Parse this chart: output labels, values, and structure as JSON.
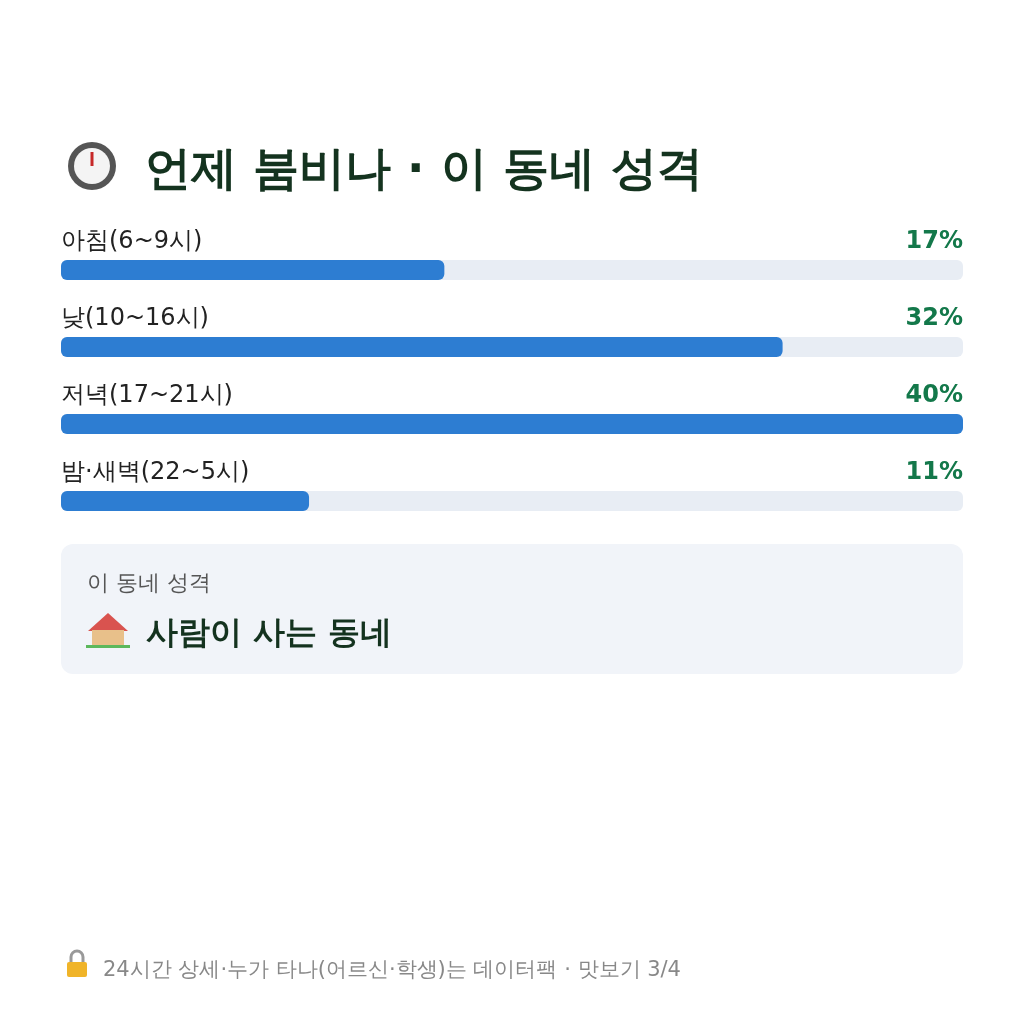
{
  "chart_data": {
    "type": "bar",
    "orientation": "horizontal",
    "title": "언제 붐비나 · 이 동네 성격",
    "categories": [
      "아침(6~9시)",
      "낮(10~16시)",
      "저녁(17~21시)",
      "밤·새벽(22~5시)"
    ],
    "values": [
      17,
      32,
      40,
      11
    ],
    "value_labels": [
      "17%",
      "32%",
      "40%",
      "11%"
    ],
    "color": "#2d7dd2",
    "annotations": [
      "이 동네 성격",
      "사람이 사는 동네",
      "24시간 상세·누가 타나(어르신·학생)는 데이터팩 · 맛보기 3/4"
    ]
  }
}
